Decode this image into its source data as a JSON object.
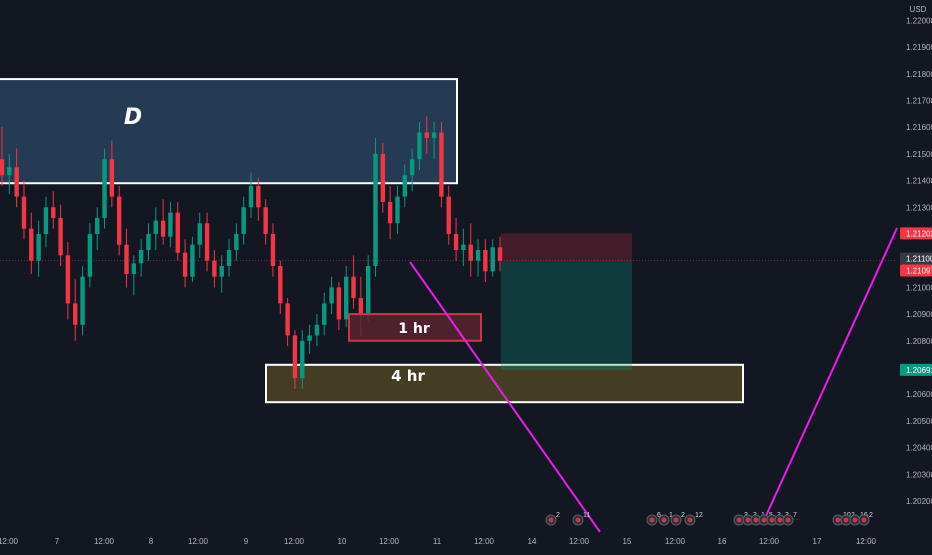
{
  "currency": "USD",
  "price_axis": {
    "ticks": [
      "1.22000",
      "1.21900",
      "1.21800",
      "1.21700",
      "1.21600",
      "1.21500",
      "1.21400",
      "1.21300",
      "1.21000",
      "1.20900",
      "1.20800",
      "1.20600",
      "1.20500",
      "1.20400",
      "1.20300",
      "1.20200"
    ]
  },
  "price_tags": [
    {
      "label": "1.21202",
      "value": 1.21202,
      "color": "#f23645"
    },
    {
      "label": "1.21100",
      "value": 1.211,
      "color": "#363a45"
    },
    {
      "label": "1.21097",
      "value": 1.21097,
      "color": "#f23645"
    },
    {
      "label": "1.20691",
      "value": 1.20691,
      "color": "#089981"
    }
  ],
  "time_axis": {
    "ticks": [
      "12:00",
      "7",
      "12:00",
      "8",
      "12:00",
      "9",
      "12:00",
      "10",
      "12:00",
      "11",
      "12:00",
      "14",
      "12:00",
      "15",
      "12:00",
      "16",
      "12:00",
      "17",
      "12:00"
    ]
  },
  "zones": [
    {
      "label": "D",
      "kind": "daily",
      "top": 1.2178,
      "bottom": 1.2139
    },
    {
      "label": "4 hr",
      "kind": "four-hour",
      "top": 1.2071,
      "bottom": 1.2057
    },
    {
      "label": "1 hr",
      "kind": "one-hour",
      "top": 1.209,
      "bottom": 1.208
    }
  ],
  "position": {
    "type": "short",
    "entry": 1.21097,
    "stop": 1.21202,
    "target": 1.20691
  },
  "current_price": 1.211,
  "events": [
    {
      "label": "2"
    },
    {
      "label": "11"
    },
    {
      "label": "6"
    },
    {
      "label": "1"
    },
    {
      "label": "2"
    },
    {
      "label": "12"
    },
    {
      "label": "3"
    },
    {
      "label": "3"
    },
    {
      "label": "1"
    },
    {
      "label": "5"
    },
    {
      "label": "3"
    },
    {
      "label": "3"
    },
    {
      "label": "7"
    },
    {
      "label": "10"
    },
    {
      "label": "2"
    },
    {
      "label": "16"
    },
    {
      "label": "2"
    }
  ],
  "colors": {
    "background": "#131722",
    "up": "#089981",
    "down": "#f23645",
    "trendline": "#e91ee6",
    "daily_zone": "#2c4865",
    "four_hour_zone": "#4f4324",
    "one_hour_zone": "#5c2530"
  },
  "chart_data": {
    "type": "candlestick",
    "symbol_currency": "USD",
    "ylim": [
      1.2017,
      1.2205
    ],
    "candles": [
      {
        "o": 1.2148,
        "h": 1.216,
        "l": 1.2138,
        "c": 1.2142
      },
      {
        "o": 1.2142,
        "h": 1.215,
        "l": 1.2135,
        "c": 1.2145
      },
      {
        "o": 1.2145,
        "h": 1.2152,
        "l": 1.213,
        "c": 1.2134
      },
      {
        "o": 1.2134,
        "h": 1.214,
        "l": 1.2118,
        "c": 1.2122
      },
      {
        "o": 1.2122,
        "h": 1.2128,
        "l": 1.2105,
        "c": 1.211
      },
      {
        "o": 1.211,
        "h": 1.2125,
        "l": 1.2104,
        "c": 1.212
      },
      {
        "o": 1.212,
        "h": 1.2134,
        "l": 1.2115,
        "c": 1.213
      },
      {
        "o": 1.213,
        "h": 1.2136,
        "l": 1.2122,
        "c": 1.2126
      },
      {
        "o": 1.2126,
        "h": 1.2131,
        "l": 1.2108,
        "c": 1.2112
      },
      {
        "o": 1.2112,
        "h": 1.2117,
        "l": 1.2088,
        "c": 1.2094
      },
      {
        "o": 1.2094,
        "h": 1.2103,
        "l": 1.208,
        "c": 1.2086
      },
      {
        "o": 1.2086,
        "h": 1.2108,
        "l": 1.2082,
        "c": 1.2104
      },
      {
        "o": 1.2104,
        "h": 1.2124,
        "l": 1.21,
        "c": 1.212
      },
      {
        "o": 1.212,
        "h": 1.213,
        "l": 1.2114,
        "c": 1.2126
      },
      {
        "o": 1.2126,
        "h": 1.2152,
        "l": 1.2122,
        "c": 1.2148
      },
      {
        "o": 1.2148,
        "h": 1.2155,
        "l": 1.213,
        "c": 1.2134
      },
      {
        "o": 1.2134,
        "h": 1.2138,
        "l": 1.2112,
        "c": 1.2116
      },
      {
        "o": 1.2116,
        "h": 1.2122,
        "l": 1.21,
        "c": 1.2105
      },
      {
        "o": 1.2105,
        "h": 1.2112,
        "l": 1.2097,
        "c": 1.2109
      },
      {
        "o": 1.2109,
        "h": 1.2118,
        "l": 1.2104,
        "c": 1.2114
      },
      {
        "o": 1.2114,
        "h": 1.2124,
        "l": 1.211,
        "c": 1.212
      },
      {
        "o": 1.212,
        "h": 1.213,
        "l": 1.2114,
        "c": 1.2125
      },
      {
        "o": 1.2125,
        "h": 1.2133,
        "l": 1.2116,
        "c": 1.2119
      },
      {
        "o": 1.2119,
        "h": 1.2132,
        "l": 1.2115,
        "c": 1.2128
      },
      {
        "o": 1.2128,
        "h": 1.2132,
        "l": 1.211,
        "c": 1.2113
      },
      {
        "o": 1.2113,
        "h": 1.2118,
        "l": 1.21,
        "c": 1.2104
      },
      {
        "o": 1.2104,
        "h": 1.2119,
        "l": 1.2102,
        "c": 1.2116
      },
      {
        "o": 1.2116,
        "h": 1.2128,
        "l": 1.2111,
        "c": 1.2124
      },
      {
        "o": 1.2124,
        "h": 1.2128,
        "l": 1.2106,
        "c": 1.211
      },
      {
        "o": 1.211,
        "h": 1.2114,
        "l": 1.21,
        "c": 1.2104
      },
      {
        "o": 1.2104,
        "h": 1.2112,
        "l": 1.2098,
        "c": 1.2108
      },
      {
        "o": 1.2108,
        "h": 1.2118,
        "l": 1.2104,
        "c": 1.2114
      },
      {
        "o": 1.2114,
        "h": 1.2124,
        "l": 1.211,
        "c": 1.212
      },
      {
        "o": 1.212,
        "h": 1.2134,
        "l": 1.2116,
        "c": 1.213
      },
      {
        "o": 1.213,
        "h": 1.2143,
        "l": 1.2126,
        "c": 1.2138
      },
      {
        "o": 1.2138,
        "h": 1.2141,
        "l": 1.2125,
        "c": 1.213
      },
      {
        "o": 1.213,
        "h": 1.2133,
        "l": 1.2116,
        "c": 1.212
      },
      {
        "o": 1.212,
        "h": 1.2124,
        "l": 1.2104,
        "c": 1.2108
      },
      {
        "o": 1.2108,
        "h": 1.211,
        "l": 1.209,
        "c": 1.2094
      },
      {
        "o": 1.2094,
        "h": 1.2096,
        "l": 1.2078,
        "c": 1.2082
      },
      {
        "o": 1.2082,
        "h": 1.2084,
        "l": 1.2062,
        "c": 1.2066
      },
      {
        "o": 1.2066,
        "h": 1.2084,
        "l": 1.2062,
        "c": 1.208
      },
      {
        "o": 1.208,
        "h": 1.2086,
        "l": 1.2075,
        "c": 1.2082
      },
      {
        "o": 1.2082,
        "h": 1.209,
        "l": 1.2078,
        "c": 1.2086
      },
      {
        "o": 1.2086,
        "h": 1.2098,
        "l": 1.2082,
        "c": 1.2094
      },
      {
        "o": 1.2094,
        "h": 1.2104,
        "l": 1.209,
        "c": 1.21
      },
      {
        "o": 1.21,
        "h": 1.2102,
        "l": 1.2084,
        "c": 1.2088
      },
      {
        "o": 1.2088,
        "h": 1.2108,
        "l": 1.2085,
        "c": 1.2104
      },
      {
        "o": 1.2104,
        "h": 1.2112,
        "l": 1.2092,
        "c": 1.2096
      },
      {
        "o": 1.2096,
        "h": 1.2104,
        "l": 1.2082,
        "c": 1.209
      },
      {
        "o": 1.209,
        "h": 1.2112,
        "l": 1.2087,
        "c": 1.2108
      },
      {
        "o": 1.2108,
        "h": 1.2156,
        "l": 1.2104,
        "c": 1.215
      },
      {
        "o": 1.215,
        "h": 1.2154,
        "l": 1.2128,
        "c": 1.2132
      },
      {
        "o": 1.2132,
        "h": 1.2138,
        "l": 1.2118,
        "c": 1.2124
      },
      {
        "o": 1.2124,
        "h": 1.2138,
        "l": 1.212,
        "c": 1.2134
      },
      {
        "o": 1.2134,
        "h": 1.2146,
        "l": 1.213,
        "c": 1.2142
      },
      {
        "o": 1.2142,
        "h": 1.2152,
        "l": 1.2136,
        "c": 1.2148
      },
      {
        "o": 1.2148,
        "h": 1.2162,
        "l": 1.2144,
        "c": 1.2158
      },
      {
        "o": 1.2158,
        "h": 1.2164,
        "l": 1.215,
        "c": 1.2156
      },
      {
        "o": 1.2156,
        "h": 1.2162,
        "l": 1.2148,
        "c": 1.2158
      },
      {
        "o": 1.2158,
        "h": 1.2162,
        "l": 1.213,
        "c": 1.2134
      },
      {
        "o": 1.2134,
        "h": 1.2138,
        "l": 1.2116,
        "c": 1.212
      },
      {
        "o": 1.212,
        "h": 1.2126,
        "l": 1.211,
        "c": 1.2114
      },
      {
        "o": 1.2114,
        "h": 1.2122,
        "l": 1.2108,
        "c": 1.2116
      },
      {
        "o": 1.2116,
        "h": 1.2124,
        "l": 1.2104,
        "c": 1.211
      },
      {
        "o": 1.211,
        "h": 1.2118,
        "l": 1.2104,
        "c": 1.2114
      },
      {
        "o": 1.2114,
        "h": 1.2118,
        "l": 1.2102,
        "c": 1.2106
      },
      {
        "o": 1.2106,
        "h": 1.2118,
        "l": 1.2104,
        "c": 1.2115
      },
      {
        "o": 1.2115,
        "h": 1.2119,
        "l": 1.2106,
        "c": 1.211
      }
    ]
  }
}
